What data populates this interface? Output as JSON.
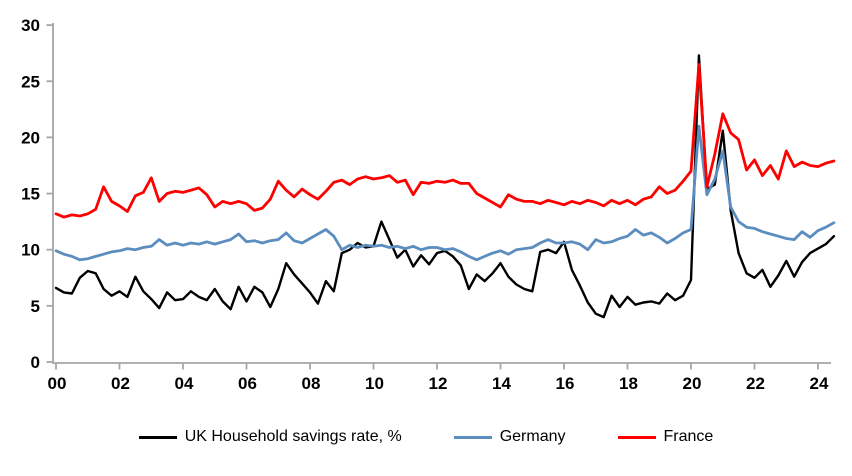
{
  "chart_data": {
    "type": "line",
    "title": "",
    "xlabel": "",
    "ylabel": "",
    "grid": false,
    "legend_position": "bottom",
    "x_axis": {
      "start_year": 2000,
      "step_per_point": 0.25,
      "tick_interval_years": 2,
      "tick_labels": [
        "00",
        "02",
        "04",
        "06",
        "08",
        "10",
        "12",
        "14",
        "16",
        "18",
        "20",
        "22",
        "24"
      ]
    },
    "y_axis": {
      "min": 0,
      "max": 30,
      "ticks": [
        0,
        5,
        10,
        15,
        20,
        25,
        30
      ]
    },
    "axis_color": "#A6A6A6",
    "text_color": "#000000",
    "series": [
      {
        "name": "UK Household savings rate, %",
        "color": "#000000",
        "stroke_width": 2.4,
        "values": [
          6.6,
          6.2,
          6.1,
          7.5,
          8.1,
          7.9,
          6.5,
          5.9,
          6.3,
          5.8,
          7.6,
          6.3,
          5.6,
          4.8,
          6.2,
          5.5,
          5.6,
          6.3,
          5.8,
          5.5,
          6.5,
          5.4,
          4.7,
          6.7,
          5.4,
          6.7,
          6.2,
          4.9,
          6.5,
          8.8,
          7.8,
          7.0,
          6.2,
          5.2,
          7.2,
          6.3,
          9.7,
          10.0,
          10.6,
          10.2,
          10.3,
          12.5,
          10.9,
          9.3,
          10.0,
          8.5,
          9.5,
          8.7,
          9.7,
          9.9,
          9.4,
          8.6,
          6.5,
          7.8,
          7.2,
          7.9,
          8.8,
          7.6,
          6.9,
          6.5,
          6.3,
          9.8,
          10.0,
          9.7,
          10.7,
          8.2,
          6.8,
          5.3,
          4.3,
          4.0,
          5.9,
          4.9,
          5.8,
          5.1,
          5.3,
          5.4,
          5.2,
          6.1,
          5.5,
          5.9,
          7.3,
          27.3,
          15.4,
          15.8,
          20.6,
          13.5,
          9.7,
          7.9,
          7.5,
          8.2,
          6.7,
          7.7,
          9.0,
          7.6,
          8.9,
          9.7,
          10.1,
          10.5,
          11.2
        ]
      },
      {
        "name": "Germany",
        "color": "#5B8DBE",
        "stroke_width": 2.8,
        "values": [
          9.9,
          9.6,
          9.4,
          9.1,
          9.2,
          9.4,
          9.6,
          9.8,
          9.9,
          10.1,
          10.0,
          10.2,
          10.3,
          10.9,
          10.4,
          10.6,
          10.4,
          10.6,
          10.5,
          10.7,
          10.5,
          10.7,
          10.9,
          11.4,
          10.7,
          10.8,
          10.6,
          10.8,
          10.9,
          11.5,
          10.8,
          10.6,
          11.0,
          11.4,
          11.8,
          11.2,
          10.0,
          10.4,
          10.2,
          10.4,
          10.3,
          10.4,
          10.2,
          10.3,
          10.1,
          10.3,
          10.0,
          10.2,
          10.2,
          10.0,
          10.1,
          9.8,
          9.4,
          9.1,
          9.4,
          9.7,
          9.9,
          9.6,
          10.0,
          10.1,
          10.2,
          10.6,
          10.9,
          10.6,
          10.6,
          10.7,
          10.5,
          10.0,
          10.9,
          10.6,
          10.7,
          11.0,
          11.2,
          11.8,
          11.3,
          11.5,
          11.1,
          10.6,
          11.0,
          11.5,
          11.8,
          21.0,
          14.9,
          16.3,
          18.8,
          13.8,
          12.5,
          12.0,
          11.9,
          11.6,
          11.4,
          11.2,
          11.0,
          10.9,
          11.6,
          11.1,
          11.7,
          12.0,
          12.4
        ]
      },
      {
        "name": "France",
        "color": "#FF0000",
        "stroke_width": 2.8,
        "values": [
          13.2,
          12.9,
          13.1,
          13.0,
          13.2,
          13.6,
          15.6,
          14.3,
          13.9,
          13.4,
          14.8,
          15.1,
          16.4,
          14.3,
          15.0,
          15.2,
          15.1,
          15.3,
          15.5,
          14.9,
          13.8,
          14.3,
          14.1,
          14.3,
          14.1,
          13.5,
          13.7,
          14.5,
          16.1,
          15.3,
          14.7,
          15.4,
          14.9,
          14.5,
          15.2,
          16.0,
          16.2,
          15.8,
          16.3,
          16.5,
          16.3,
          16.4,
          16.6,
          16.0,
          16.2,
          14.9,
          16.0,
          15.9,
          16.1,
          16.0,
          16.2,
          15.9,
          15.9,
          15.0,
          14.6,
          14.2,
          13.8,
          14.9,
          14.5,
          14.3,
          14.3,
          14.1,
          14.4,
          14.2,
          14.0,
          14.3,
          14.1,
          14.4,
          14.2,
          13.9,
          14.4,
          14.1,
          14.4,
          14.0,
          14.5,
          14.7,
          15.6,
          15.0,
          15.3,
          16.1,
          17.0,
          26.5,
          15.6,
          18.5,
          22.1,
          20.4,
          19.8,
          17.1,
          18.0,
          16.6,
          17.5,
          16.3,
          18.8,
          17.4,
          17.8,
          17.5,
          17.4,
          17.7,
          17.9
        ]
      }
    ]
  }
}
